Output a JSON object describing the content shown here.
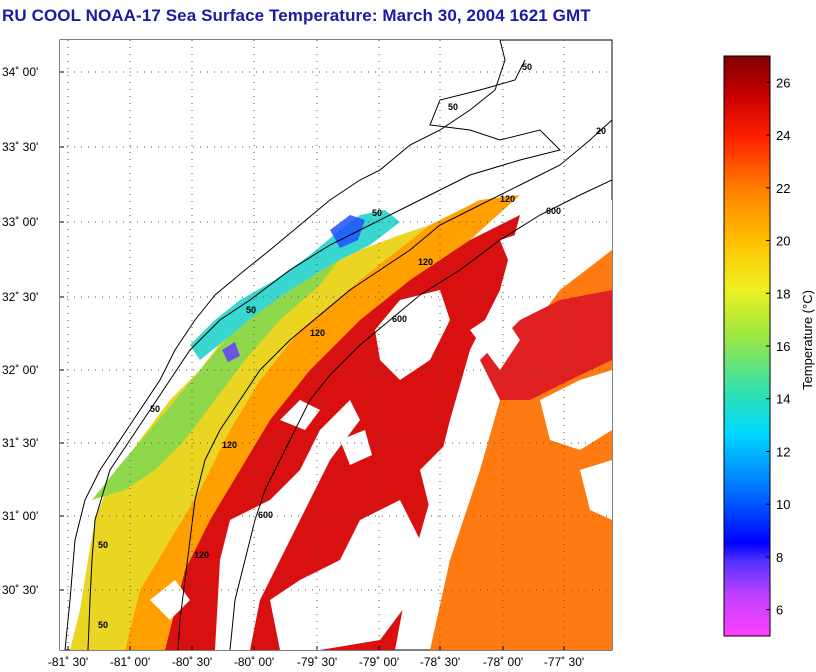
{
  "title": "RU COOL  NOAA-17  Sea Surface Temperature:  March 30, 2004 1621 GMT",
  "map": {
    "lat_labels": [
      {
        "text": "34˚ 00'",
        "lat": 34.0
      },
      {
        "text": "33˚ 30'",
        "lat": 33.5
      },
      {
        "text": "33˚ 00'",
        "lat": 33.0
      },
      {
        "text": "32˚ 30'",
        "lat": 32.5
      },
      {
        "text": "32˚ 00'",
        "lat": 32.0
      },
      {
        "text": "31˚ 30'",
        "lat": 31.5
      },
      {
        "text": "31˚ 00'",
        "lat": 31.0
      },
      {
        "text": "30˚ 30'",
        "lat": 30.5
      }
    ],
    "lon_labels": [
      {
        "text": "-81˚ 30'",
        "lon": -81.5
      },
      {
        "text": "-81˚ 00'",
        "lon": -81.0
      },
      {
        "text": "-80˚ 30'",
        "lon": -80.5
      },
      {
        "text": "-80˚ 00'",
        "lon": -80.0
      },
      {
        "text": "-79˚ 30'",
        "lon": -79.5
      },
      {
        "text": "-79˚ 00'",
        "lon": -79.0
      },
      {
        "text": "-78˚ 30'",
        "lon": -78.5
      },
      {
        "text": "-78˚ 00'",
        "lon": -78.0
      },
      {
        "text": "-77˚ 30'",
        "lon": -77.5
      }
    ],
    "isobath_labels": [
      "50",
      "50",
      "50",
      "50",
      "50",
      "50",
      "50",
      "120",
      "120",
      "120",
      "120",
      "120",
      "600",
      "600",
      "600",
      "20"
    ],
    "grid": true
  },
  "colorbar": {
    "title": "Temperature (°C)",
    "min": 5,
    "max": 27,
    "ticks": [
      6,
      8,
      10,
      12,
      14,
      16,
      18,
      20,
      22,
      24,
      26
    ],
    "colors": [
      "#ff40ff",
      "#b040ff",
      "#1010ff",
      "#00a0ff",
      "#00e0e0",
      "#60e080",
      "#e0f030",
      "#ffd000",
      "#ff8000",
      "#ff2000",
      "#c00000",
      "#800000"
    ]
  }
}
